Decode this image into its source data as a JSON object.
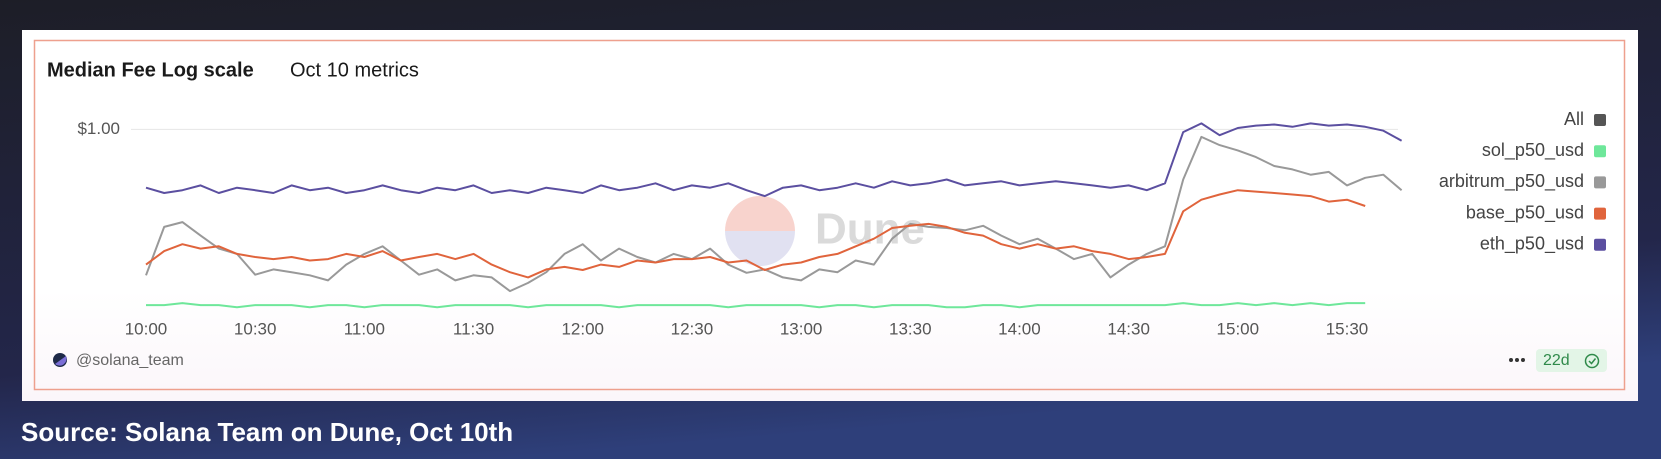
{
  "chart_data": {
    "type": "line",
    "title": "Median Fee Log scale",
    "subtitle": "Oct 10 metrics",
    "log_scale": true,
    "grid": true,
    "legend": "right",
    "legend_toggle": {
      "label": "All",
      "color": "#555555"
    },
    "watermark": "Dune",
    "ylim": [
      0.001,
      2
    ],
    "yticks": [
      {
        "value": 1,
        "label": "$1.00"
      }
    ],
    "xticks": [
      "10:00",
      "10:30",
      "11:00",
      "11:30",
      "12:00",
      "12:30",
      "13:00",
      "13:30",
      "14:00",
      "14:30",
      "15:00",
      "15:30"
    ],
    "x": [
      "10:00",
      "10:05",
      "10:10",
      "10:15",
      "10:20",
      "10:25",
      "10:30",
      "10:35",
      "10:40",
      "10:45",
      "10:50",
      "10:55",
      "11:00",
      "11:05",
      "11:10",
      "11:15",
      "11:20",
      "11:25",
      "11:30",
      "11:35",
      "11:40",
      "11:45",
      "11:50",
      "11:55",
      "12:00",
      "12:05",
      "12:10",
      "12:15",
      "12:20",
      "12:25",
      "12:30",
      "12:35",
      "12:40",
      "12:45",
      "12:50",
      "12:55",
      "13:00",
      "13:05",
      "13:10",
      "13:15",
      "13:20",
      "13:25",
      "13:30",
      "13:35",
      "13:40",
      "13:45",
      "13:50",
      "13:55",
      "14:00",
      "14:05",
      "14:10",
      "14:15",
      "14:20",
      "14:25",
      "14:30",
      "14:35",
      "14:40",
      "14:45",
      "14:50",
      "14:55",
      "15:00",
      "15:05",
      "15:10",
      "15:15",
      "15:20",
      "15:25",
      "15:30",
      "15:35",
      "15:40",
      "15:45"
    ],
    "series": [
      {
        "name": "sol_p50_usd",
        "color": "#6ee79a",
        "values": [
          0.0013,
          0.0013,
          0.0014,
          0.0013,
          0.0013,
          0.0012,
          0.0013,
          0.0013,
          0.0013,
          0.0012,
          0.0013,
          0.0013,
          0.0012,
          0.0013,
          0.0013,
          0.0013,
          0.0012,
          0.0013,
          0.0013,
          0.0013,
          0.0013,
          0.0012,
          0.0013,
          0.0013,
          0.0013,
          0.0013,
          0.0012,
          0.0013,
          0.0013,
          0.0013,
          0.0013,
          0.0013,
          0.0012,
          0.0013,
          0.0013,
          0.0013,
          0.0013,
          0.0012,
          0.0013,
          0.0013,
          0.0012,
          0.0013,
          0.0013,
          0.0013,
          0.0012,
          0.0012,
          0.0013,
          0.0013,
          0.0012,
          0.0013,
          0.0013,
          0.0013,
          0.0013,
          0.0013,
          0.0013,
          0.0013,
          0.0013,
          0.0014,
          0.0013,
          0.0013,
          0.0014,
          0.0013,
          0.0014,
          0.0013,
          0.0014,
          0.0013,
          0.0014,
          0.0014,
          null,
          null
        ]
      },
      {
        "name": "arbitrum_p50_usd",
        "color": "#999999",
        "values": [
          0.004,
          0.025,
          0.03,
          0.018,
          0.011,
          0.009,
          0.0041,
          0.005,
          0.0045,
          0.004,
          0.0033,
          0.006,
          0.009,
          0.012,
          0.007,
          0.0041,
          0.005,
          0.0033,
          0.004,
          0.0037,
          0.0022,
          0.003,
          0.0045,
          0.009,
          0.013,
          0.007,
          0.011,
          0.008,
          0.0065,
          0.009,
          0.0074,
          0.011,
          0.006,
          0.0044,
          0.005,
          0.0037,
          0.0033,
          0.005,
          0.0045,
          0.007,
          0.006,
          0.016,
          0.028,
          0.025,
          0.024,
          0.022,
          0.026,
          0.018,
          0.013,
          0.016,
          0.011,
          0.0074,
          0.009,
          0.0037,
          0.006,
          0.009,
          0.012,
          0.15,
          0.75,
          0.55,
          0.45,
          0.35,
          0.25,
          0.22,
          0.18,
          0.2,
          0.12,
          0.16,
          0.18,
          0.1
        ]
      },
      {
        "name": "base_p50_usd",
        "color": "#e0643c",
        "values": [
          0.006,
          0.01,
          0.013,
          0.011,
          0.012,
          0.009,
          0.008,
          0.0074,
          0.008,
          0.007,
          0.0074,
          0.009,
          0.008,
          0.01,
          0.007,
          0.008,
          0.009,
          0.0074,
          0.009,
          0.006,
          0.0045,
          0.0037,
          0.005,
          0.0055,
          0.0049,
          0.006,
          0.0055,
          0.007,
          0.0065,
          0.0074,
          0.0074,
          0.008,
          0.0065,
          0.007,
          0.0049,
          0.006,
          0.0065,
          0.008,
          0.009,
          0.012,
          0.016,
          0.024,
          0.026,
          0.028,
          0.025,
          0.02,
          0.018,
          0.013,
          0.011,
          0.013,
          0.011,
          0.012,
          0.01,
          0.009,
          0.0074,
          0.008,
          0.009,
          0.045,
          0.07,
          0.085,
          0.1,
          0.095,
          0.09,
          0.085,
          0.08,
          0.065,
          0.07,
          0.055,
          null,
          null
        ]
      },
      {
        "name": "eth_p50_usd",
        "color": "#5b4fa0",
        "values": [
          0.11,
          0.09,
          0.1,
          0.12,
          0.09,
          0.11,
          0.1,
          0.09,
          0.12,
          0.1,
          0.11,
          0.09,
          0.1,
          0.12,
          0.1,
          0.09,
          0.11,
          0.1,
          0.12,
          0.09,
          0.1,
          0.09,
          0.11,
          0.1,
          0.09,
          0.12,
          0.1,
          0.11,
          0.13,
          0.1,
          0.12,
          0.11,
          0.13,
          0.1,
          0.08,
          0.11,
          0.12,
          0.1,
          0.11,
          0.13,
          0.11,
          0.14,
          0.12,
          0.13,
          0.15,
          0.12,
          0.13,
          0.14,
          0.12,
          0.13,
          0.14,
          0.13,
          0.12,
          0.11,
          0.12,
          0.1,
          0.13,
          0.9,
          1.25,
          0.8,
          1.05,
          1.15,
          1.2,
          1.1,
          1.25,
          1.15,
          1.2,
          1.1,
          0.95,
          0.65
        ]
      }
    ]
  },
  "footer": {
    "author": "@solana_team",
    "age": "22d"
  },
  "caption": "Source: Solana Team on Dune, Oct 10th"
}
